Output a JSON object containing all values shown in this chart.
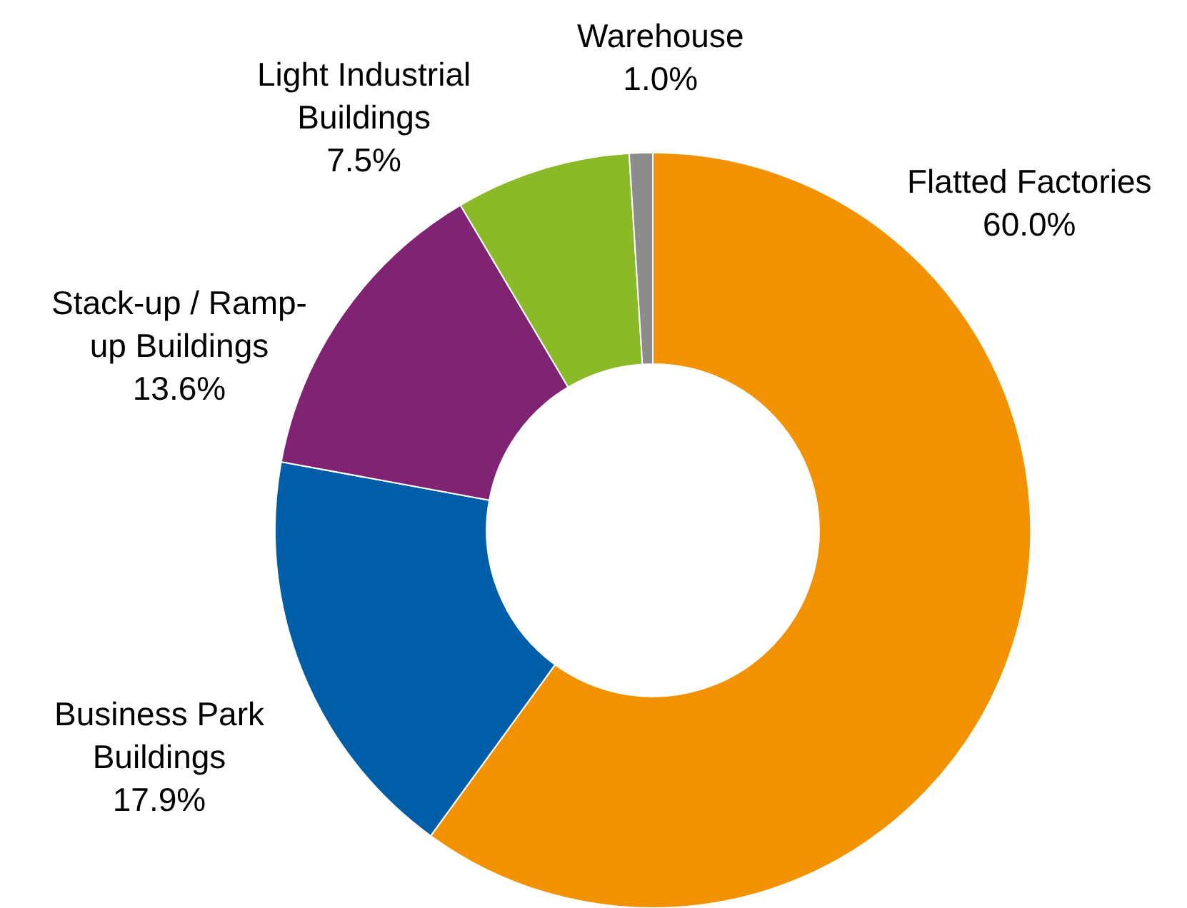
{
  "chart_data": {
    "type": "donut",
    "categories": [
      "Flatted Factories",
      "Business Park\nBuildings",
      "Stack-up / Ramp-\nup Buildings",
      "Light Industrial\nBuildings",
      "Warehouse"
    ],
    "values": [
      60.0,
      17.9,
      13.6,
      7.5,
      1.0
    ],
    "value_labels": [
      "60.0%",
      "17.9%",
      "13.6%",
      "7.5%",
      "1.0%"
    ],
    "colors": [
      "#f39200",
      "#005ea8",
      "#7f2372",
      "#8aba28",
      "#8c8c8c"
    ],
    "legend": false
  }
}
